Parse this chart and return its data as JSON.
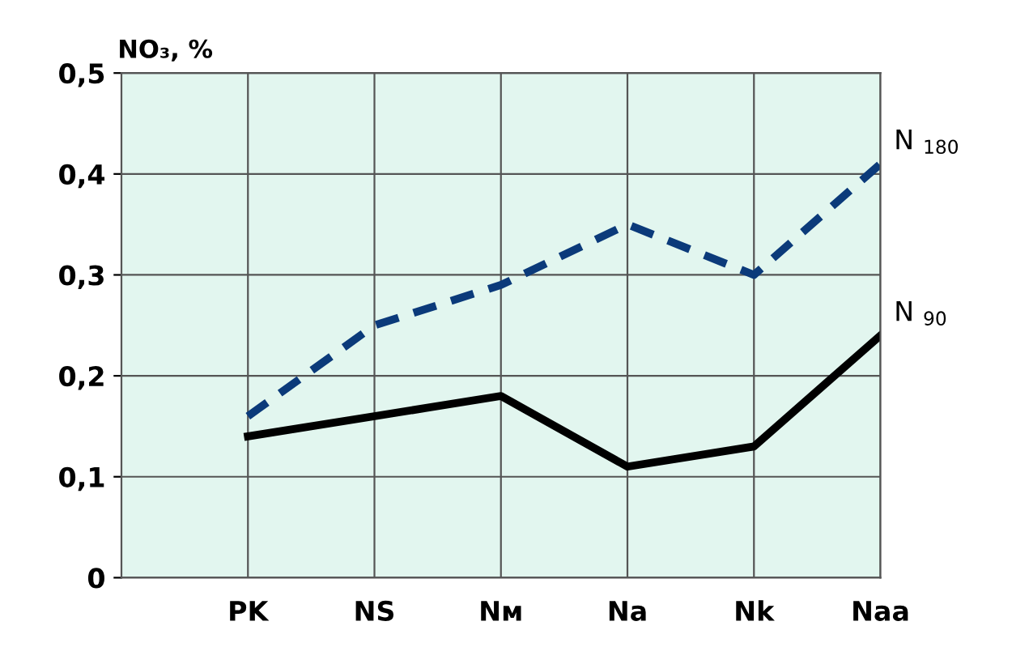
{
  "chart_data": {
    "type": "line",
    "ylabel": "NO₃, %",
    "categories": [
      "PK",
      "NS",
      "Nм",
      "Na",
      "Nk",
      "Naa"
    ],
    "series": [
      {
        "name": "N $_{180}$",
        "color": "#0b3a7a",
        "line_style": "dashed",
        "values": [
          0.16,
          0.25,
          0.29,
          0.35,
          0.3,
          0.41
        ]
      },
      {
        "name": "N $_{90}$",
        "color": "#000000",
        "line_style": "solid",
        "values": [
          0.14,
          0.16,
          0.18,
          0.11,
          0.13,
          0.24
        ]
      }
    ],
    "ylim": [
      0,
      0.5
    ],
    "yticks": [
      {
        "value": 0,
        "label": "0"
      },
      {
        "value": 0.1,
        "label": "0,1"
      },
      {
        "value": 0.2,
        "label": "0,2"
      },
      {
        "value": 0.3,
        "label": "0,3"
      },
      {
        "value": 0.4,
        "label": "0,4"
      },
      {
        "value": 0.5,
        "label": "0,5"
      }
    ],
    "grid": true,
    "marker": "none"
  }
}
